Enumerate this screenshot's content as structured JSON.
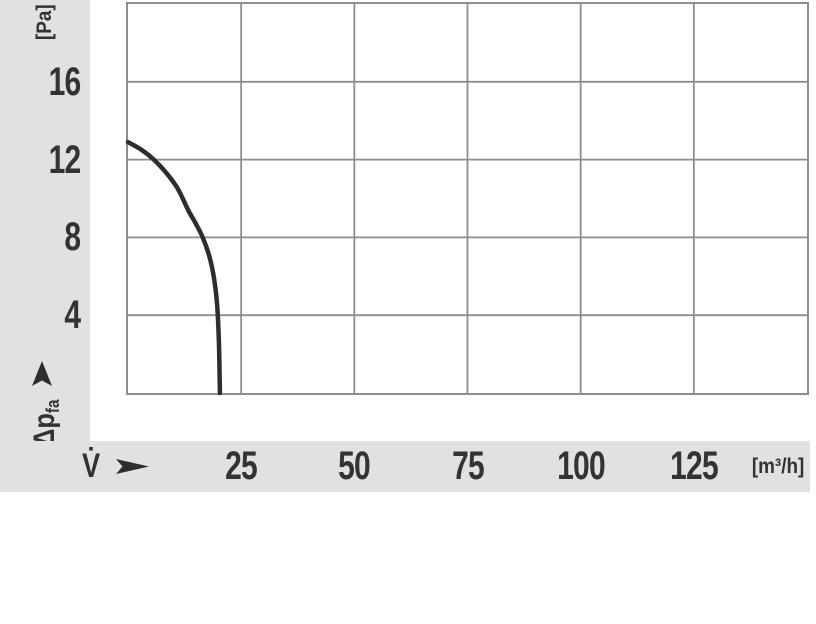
{
  "chart": {
    "panel_color": "#e1e1e1",
    "grid_color": "#8d8d8d",
    "curve_color": "#2d2d2d",
    "text_color": "#333333",
    "y_axis": {
      "unit_label": "[Pa]",
      "quantity_label": "Δp",
      "quantity_sub": "fa",
      "tick_labels": [
        "16",
        "12",
        "8",
        "4"
      ]
    },
    "x_axis": {
      "unit_label": "[m³/h]",
      "quantity_label": "V̇",
      "tick_labels": [
        "25",
        "50",
        "75",
        "100",
        "125"
      ]
    }
  },
  "chart_data": {
    "type": "line",
    "title": "",
    "xlabel": "V̇ [m³/h]",
    "ylabel": "Δp fa [Pa]",
    "xlim": [
      0,
      150
    ],
    "ylim": [
      0,
      20
    ],
    "x_ticks": [
      25,
      50,
      75,
      100,
      125
    ],
    "y_ticks": [
      16,
      12,
      8,
      4
    ],
    "grid": true,
    "legend": false,
    "series": [
      {
        "name": "air-flow-pressure-curve",
        "points": [
          [
            0,
            12.9
          ],
          [
            3,
            12.5
          ],
          [
            5.7,
            12.0
          ],
          [
            8.5,
            11.3
          ],
          [
            11,
            10.5
          ],
          [
            13.3,
            9.4
          ],
          [
            15,
            8.7
          ],
          [
            16.5,
            8.0
          ],
          [
            18,
            7.0
          ],
          [
            19,
            5.9
          ],
          [
            19.7,
            4.5
          ],
          [
            20.1,
            2.5
          ],
          [
            20.3,
            0
          ]
        ]
      }
    ]
  }
}
